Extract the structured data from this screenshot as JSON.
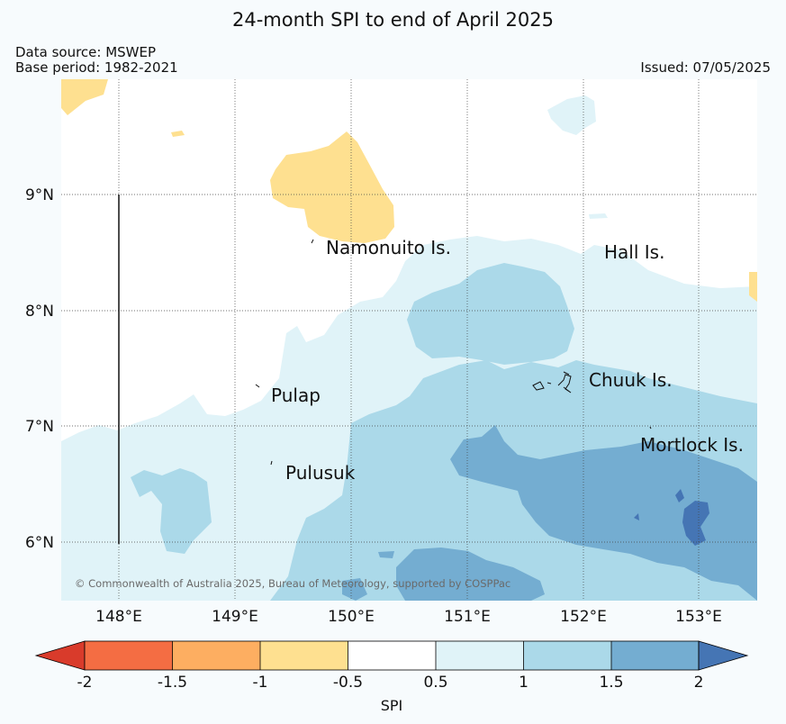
{
  "header": {
    "title": "24-month SPI to end of April 2025",
    "source": "Data source: MSWEP",
    "base_period": "Base period: 1982-2021",
    "issued": "Issued: 07/05/2025"
  },
  "map": {
    "lat_labels": [
      "9°N",
      "8°N",
      "7°N",
      "6°N"
    ],
    "lon_labels": [
      "148°E",
      "149°E",
      "150°E",
      "151°E",
      "152°E",
      "153°E"
    ],
    "places": [
      "Namonuito Is.",
      "Hall Is.",
      "Pulap",
      "Chuuk Is.",
      "Pulusuk",
      "Mortlock Is."
    ],
    "copyright": "© Commonwealth of Australia 2025, Bureau of Meteorology, supported by COSPPac"
  },
  "legend": {
    "label": "SPI",
    "ticks": [
      "-2",
      "-1.5",
      "-1",
      "-0.5",
      "0.5",
      "1",
      "1.5",
      "2"
    ],
    "colors": [
      "#d93b2b",
      "#f46d43",
      "#fdae61",
      "#fee090",
      "#ffffff",
      "#e0f3f8",
      "#abd9e9",
      "#74add1",
      "#4575b4"
    ]
  }
}
